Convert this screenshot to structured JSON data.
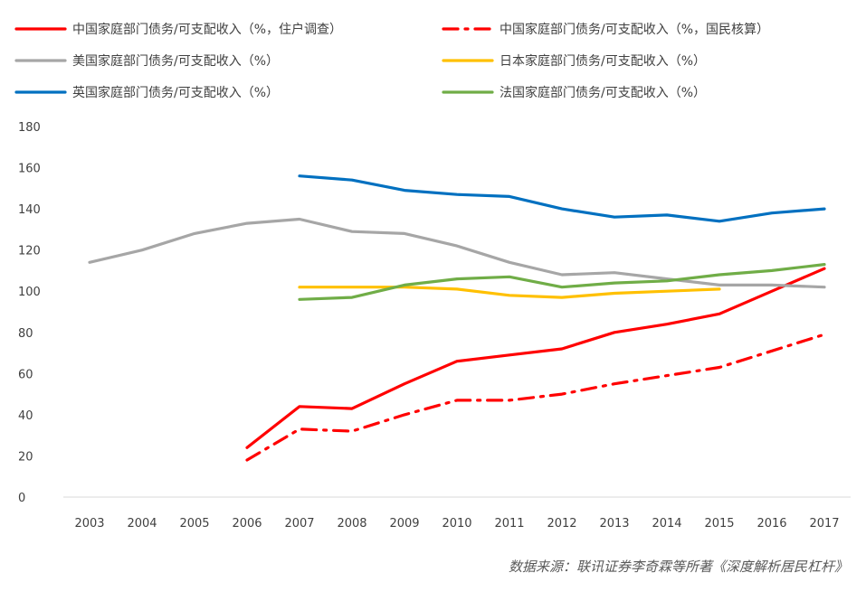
{
  "source_note": "数据来源：联讯证券李奇霖等所著《深度解析居民杠杆》",
  "chart_data": {
    "type": "line",
    "title": "",
    "xlabel": "",
    "ylabel": "",
    "ylim": [
      0,
      180
    ],
    "yticks": [
      0,
      20,
      40,
      60,
      80,
      100,
      120,
      140,
      160,
      180
    ],
    "categories": [
      "2003",
      "2004",
      "2005",
      "2006",
      "2007",
      "2008",
      "2009",
      "2010",
      "2011",
      "2012",
      "2013",
      "2014",
      "2015",
      "2016",
      "2017"
    ],
    "grid": false,
    "legend_position": "top",
    "series": [
      {
        "name": "中国家庭部门债务/可支配收入（%，住户调查）",
        "color": "#FF0000",
        "dash": "solid",
        "values": [
          null,
          null,
          null,
          24,
          44,
          43,
          55,
          66,
          69,
          72,
          80,
          84,
          89,
          100,
          111
        ]
      },
      {
        "name": "中国家庭部门债务/可支配收入（%，国民核算）",
        "color": "#FF0000",
        "dash": "dashdot",
        "values": [
          null,
          null,
          null,
          18,
          33,
          32,
          40,
          47,
          47,
          50,
          55,
          59,
          63,
          71,
          79
        ]
      },
      {
        "name": "美国家庭部门债务/可支配收入（%）",
        "color": "#A6A6A6",
        "dash": "solid",
        "values": [
          114,
          120,
          128,
          133,
          135,
          129,
          128,
          122,
          114,
          108,
          109,
          106,
          103,
          103,
          102
        ]
      },
      {
        "name": "日本家庭部门债务/可支配收入（%）",
        "color": "#FFC000",
        "dash": "solid",
        "values": [
          null,
          null,
          null,
          null,
          102,
          102,
          102,
          101,
          98,
          97,
          99,
          100,
          101,
          null,
          null
        ]
      },
      {
        "name": "英国家庭部门债务/可支配收入（%）",
        "color": "#0070C0",
        "dash": "solid",
        "values": [
          null,
          null,
          null,
          null,
          156,
          154,
          149,
          147,
          146,
          140,
          136,
          137,
          134,
          138,
          140
        ]
      },
      {
        "name": "法国家庭部门债务/可支配收入（%）",
        "color": "#70AD47",
        "dash": "solid",
        "values": [
          null,
          null,
          null,
          null,
          96,
          97,
          103,
          106,
          107,
          102,
          104,
          105,
          108,
          110,
          113
        ]
      }
    ]
  }
}
